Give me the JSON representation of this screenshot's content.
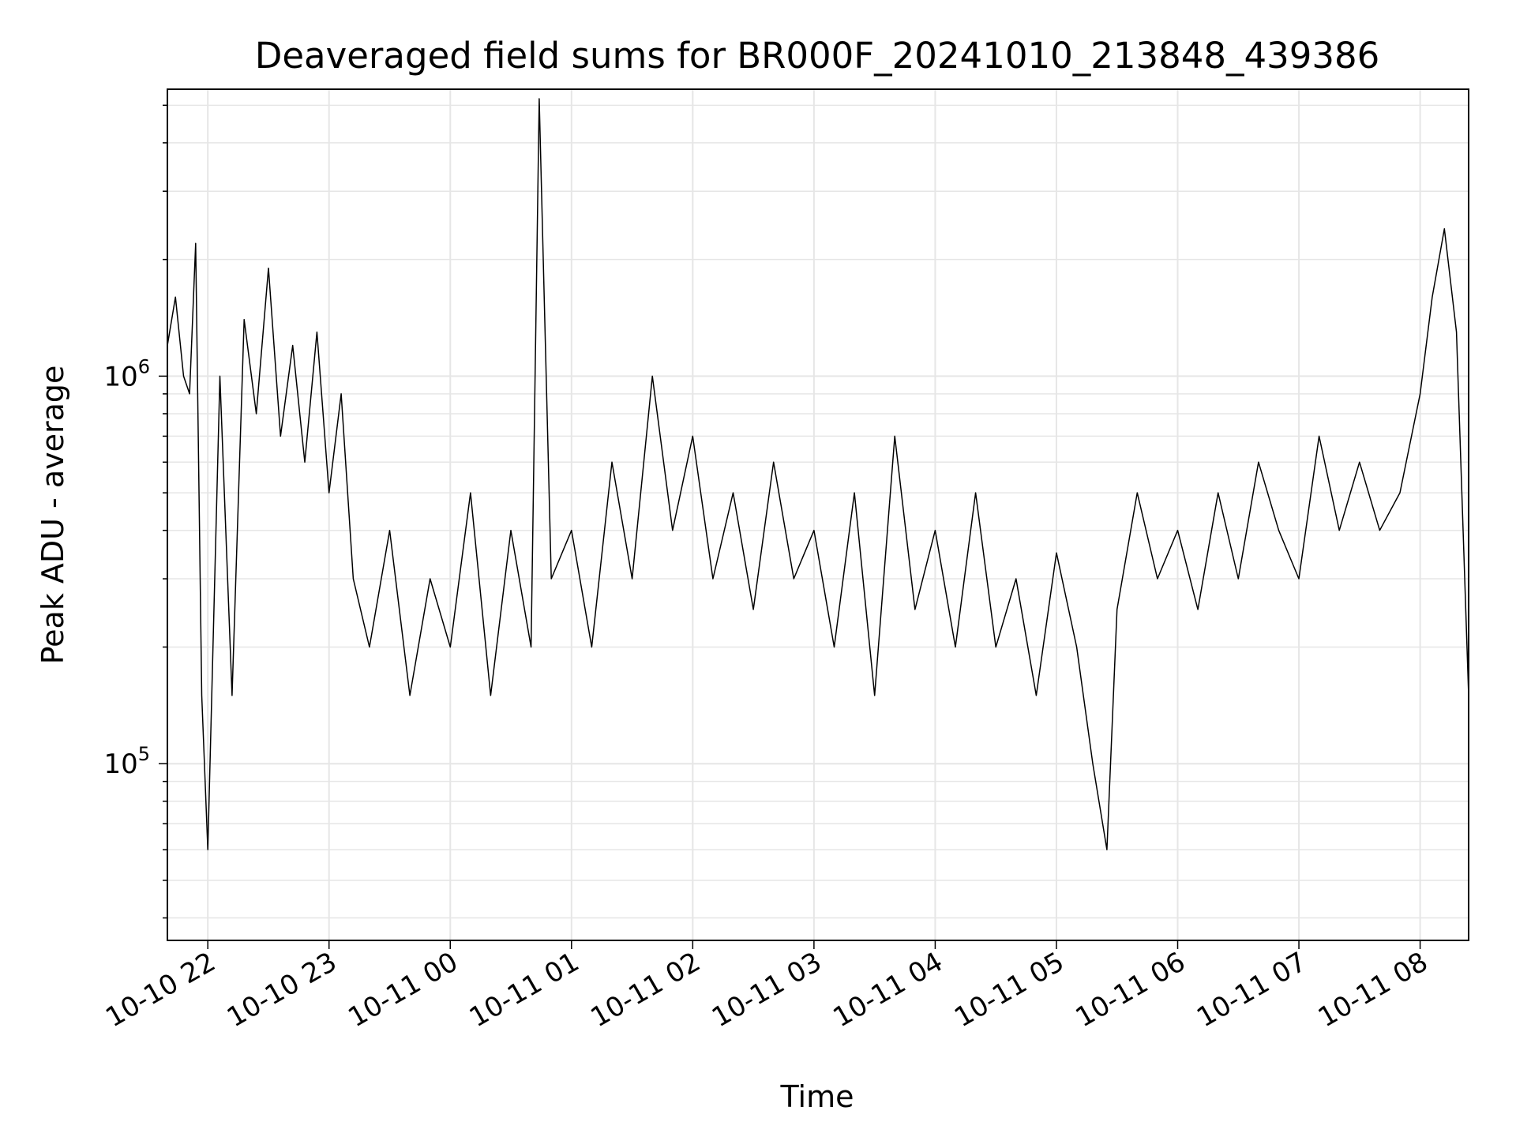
{
  "chart_data": {
    "type": "line",
    "title": "Deaveraged field sums for BR000F_20241010_213848_439386",
    "xlabel": "Time",
    "ylabel": "Peak ADU - average",
    "yscale": "log",
    "ylim": [
      35000,
      5500000
    ],
    "xlim": [
      "2024-10-10 21:40",
      "2024-10-11 08:24"
    ],
    "grid": true,
    "x_ticks": [
      {
        "value": "2024-10-10 22:00",
        "label": "10-10 22"
      },
      {
        "value": "2024-10-10 23:00",
        "label": "10-10 23"
      },
      {
        "value": "2024-10-11 00:00",
        "label": "10-11 00"
      },
      {
        "value": "2024-10-11 01:00",
        "label": "10-11 01"
      },
      {
        "value": "2024-10-11 02:00",
        "label": "10-11 02"
      },
      {
        "value": "2024-10-11 03:00",
        "label": "10-11 03"
      },
      {
        "value": "2024-10-11 04:00",
        "label": "10-11 04"
      },
      {
        "value": "2024-10-11 05:00",
        "label": "10-11 05"
      },
      {
        "value": "2024-10-11 06:00",
        "label": "10-11 06"
      },
      {
        "value": "2024-10-11 07:00",
        "label": "10-11 07"
      },
      {
        "value": "2024-10-11 08:00",
        "label": "10-11 08"
      }
    ],
    "y_ticks": [
      {
        "value": 100000,
        "base": "10",
        "exp": "5"
      },
      {
        "value": 1000000,
        "base": "10",
        "exp": "6"
      }
    ],
    "series": [
      {
        "color": "#000000",
        "x": [
          "2024-10-10 21:40",
          "2024-10-10 21:44",
          "2024-10-10 21:48",
          "2024-10-10 21:51",
          "2024-10-10 21:54",
          "2024-10-10 21:57",
          "2024-10-10 22:00",
          "2024-10-10 22:06",
          "2024-10-10 22:12",
          "2024-10-10 22:18",
          "2024-10-10 22:24",
          "2024-10-10 22:30",
          "2024-10-10 22:36",
          "2024-10-10 22:42",
          "2024-10-10 22:48",
          "2024-10-10 22:54",
          "2024-10-10 23:00",
          "2024-10-10 23:06",
          "2024-10-10 23:12",
          "2024-10-10 23:20",
          "2024-10-10 23:30",
          "2024-10-10 23:40",
          "2024-10-10 23:50",
          "2024-10-11 00:00",
          "2024-10-11 00:10",
          "2024-10-11 00:20",
          "2024-10-11 00:30",
          "2024-10-11 00:40",
          "2024-10-11 00:44",
          "2024-10-11 00:50",
          "2024-10-11 01:00",
          "2024-10-11 01:10",
          "2024-10-11 01:20",
          "2024-10-11 01:30",
          "2024-10-11 01:40",
          "2024-10-11 01:50",
          "2024-10-11 02:00",
          "2024-10-11 02:10",
          "2024-10-11 02:20",
          "2024-10-11 02:30",
          "2024-10-11 02:40",
          "2024-10-11 02:50",
          "2024-10-11 03:00",
          "2024-10-11 03:10",
          "2024-10-11 03:20",
          "2024-10-11 03:30",
          "2024-10-11 03:40",
          "2024-10-11 03:50",
          "2024-10-11 04:00",
          "2024-10-11 04:10",
          "2024-10-11 04:20",
          "2024-10-11 04:30",
          "2024-10-11 04:40",
          "2024-10-11 04:50",
          "2024-10-11 05:00",
          "2024-10-11 05:10",
          "2024-10-11 05:18",
          "2024-10-11 05:25",
          "2024-10-11 05:30",
          "2024-10-11 05:40",
          "2024-10-11 05:50",
          "2024-10-11 06:00",
          "2024-10-11 06:10",
          "2024-10-11 06:20",
          "2024-10-11 06:30",
          "2024-10-11 06:40",
          "2024-10-11 06:50",
          "2024-10-11 07:00",
          "2024-10-11 07:10",
          "2024-10-11 07:20",
          "2024-10-11 07:30",
          "2024-10-11 07:40",
          "2024-10-11 07:50",
          "2024-10-11 08:00",
          "2024-10-11 08:06",
          "2024-10-11 08:12",
          "2024-10-11 08:18",
          "2024-10-11 08:24"
        ],
        "y": [
          1200000,
          1600000,
          1000000,
          900000,
          2200000,
          150000,
          60000,
          1000000,
          150000,
          1400000,
          800000,
          1900000,
          700000,
          1200000,
          600000,
          1300000,
          500000,
          900000,
          300000,
          200000,
          400000,
          150000,
          300000,
          200000,
          500000,
          150000,
          400000,
          200000,
          5200000,
          300000,
          400000,
          200000,
          600000,
          300000,
          1000000,
          400000,
          700000,
          300000,
          500000,
          250000,
          600000,
          300000,
          400000,
          200000,
          500000,
          150000,
          700000,
          250000,
          400000,
          200000,
          500000,
          200000,
          300000,
          150000,
          350000,
          200000,
          100000,
          60000,
          250000,
          500000,
          300000,
          400000,
          250000,
          500000,
          300000,
          600000,
          400000,
          300000,
          700000,
          400000,
          600000,
          400000,
          500000,
          900000,
          1600000,
          2400000,
          1300000,
          150000
        ]
      }
    ]
  }
}
